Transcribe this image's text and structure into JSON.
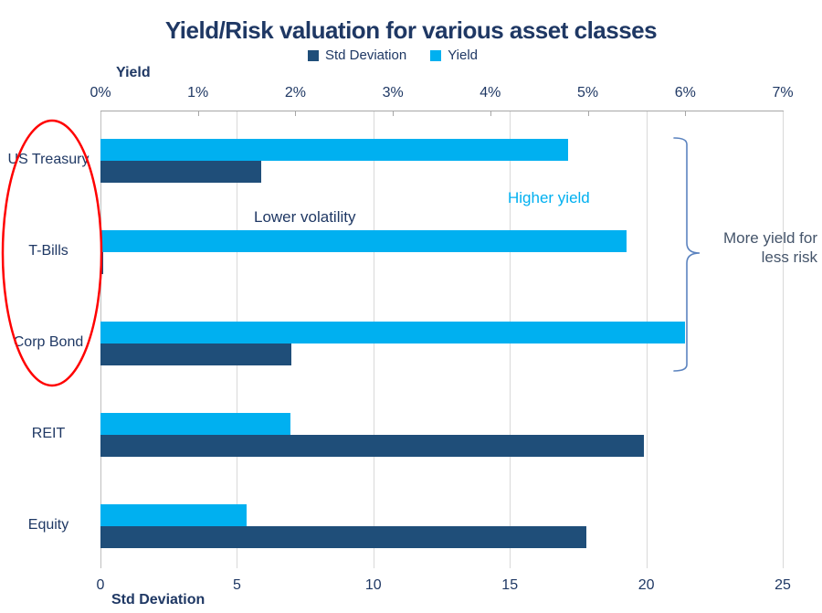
{
  "title": "Yield/Risk valuation for various asset classes",
  "legend": [
    {
      "label": "Std Deviation",
      "color": "#1F4E79"
    },
    {
      "label": "Yield",
      "color": "#00B0F0"
    }
  ],
  "top_axis": {
    "title": "Yield",
    "tick_labels": [
      "0%",
      "1%",
      "2%",
      "3%",
      "4%",
      "5%",
      "6%",
      "7%"
    ],
    "min": 0,
    "max": 7
  },
  "bottom_axis": {
    "title": "Std Deviation",
    "tick_labels": [
      "0",
      "5",
      "10",
      "15",
      "20",
      "25"
    ],
    "min": 0,
    "max": 25
  },
  "chart_data": {
    "type": "bar",
    "orientation": "horizontal",
    "title": "Yield/Risk valuation for various asset classes",
    "categories": [
      "US Treasury",
      "T-Bills",
      "Corp Bond",
      "REIT",
      "Equity"
    ],
    "series": [
      {
        "name": "Yield",
        "axis": "top",
        "unit": "%",
        "color": "#00B0F0",
        "row": 0,
        "values": [
          4.8,
          5.4,
          6.0,
          1.95,
          1.5
        ]
      },
      {
        "name": "Std Deviation",
        "axis": "bottom",
        "unit": "",
        "color": "#1F4E79",
        "row": 1,
        "values": [
          5.9,
          0.1,
          7.0,
          19.9,
          17.8
        ]
      }
    ],
    "grid": "vertical-on-bottom-axis-ticks",
    "legend_position": "top-center"
  },
  "annotations": {
    "higher_yield": {
      "text": "Higher yield",
      "color": "#00B0F0"
    },
    "lower_volatility": {
      "text": "Lower volatility",
      "color": "#1F3864"
    },
    "more_yield": {
      "text": "More yield for\nless risk",
      "color": "#44546A"
    },
    "circled_categories": [
      "US Treasury",
      "T-Bills",
      "Corp Bond"
    ],
    "ellipse_color": "#FF0000",
    "brace_color": "#5B83BF"
  },
  "colors": {
    "title_text": "#1F3864",
    "axis_text": "#1F3864",
    "gridline": "#D9D9D9",
    "axis_line": "#A6A6A6"
  }
}
